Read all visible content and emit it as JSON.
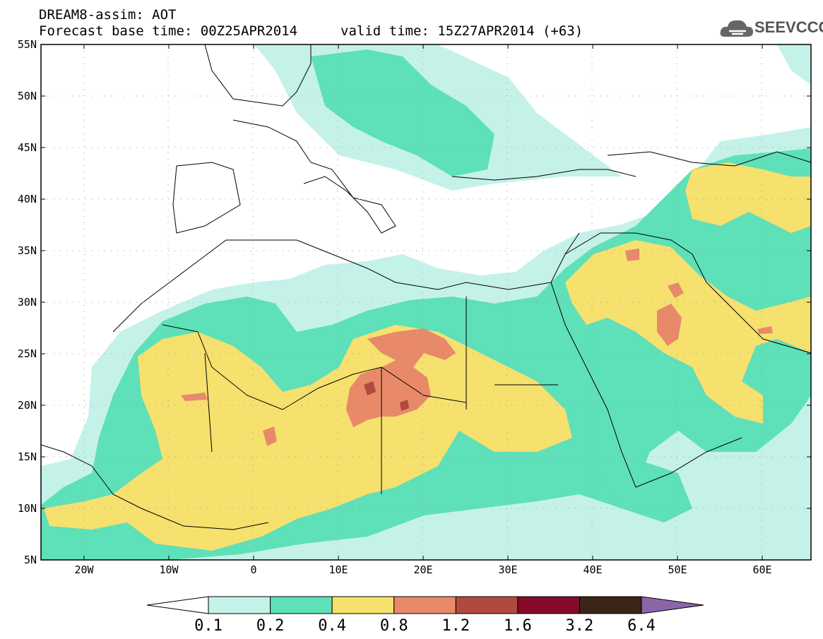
{
  "header": {
    "title_line1": "DREAM8-assim: AOT",
    "title_line2": "Forecast base time: 00Z25APR2014",
    "valid_time": "valid time: 15Z27APR2014 (+63)",
    "logo_text": "SEEVCCC"
  },
  "axes": {
    "lat_labels": [
      "55N",
      "50N",
      "45N",
      "40N",
      "35N",
      "30N",
      "25N",
      "20N",
      "15N",
      "10N",
      "5N"
    ],
    "lon_labels": [
      "20W",
      "10W",
      "0",
      "10E",
      "20E",
      "30E",
      "40E",
      "50E",
      "60E"
    ],
    "lon_range": [
      -25,
      65
    ],
    "lat_range": [
      5,
      55
    ]
  },
  "colorbar": {
    "labels": [
      "0.1",
      "0.2",
      "0.4",
      "0.8",
      "1.2",
      "1.6",
      "3.2",
      "6.4"
    ],
    "colors": [
      "#ffffff",
      "#c4f2e8",
      "#5ee0b8",
      "#f6e06e",
      "#e8896a",
      "#b04a3c",
      "#850a2c",
      "#3c2418",
      "#8a66a8"
    ]
  },
  "palette": {
    "light_cyan": "#c4f2e8",
    "green": "#5ee0b8",
    "yellow": "#f6e06e",
    "orange": "#e8896a",
    "dark_red": "#b04a3c"
  }
}
